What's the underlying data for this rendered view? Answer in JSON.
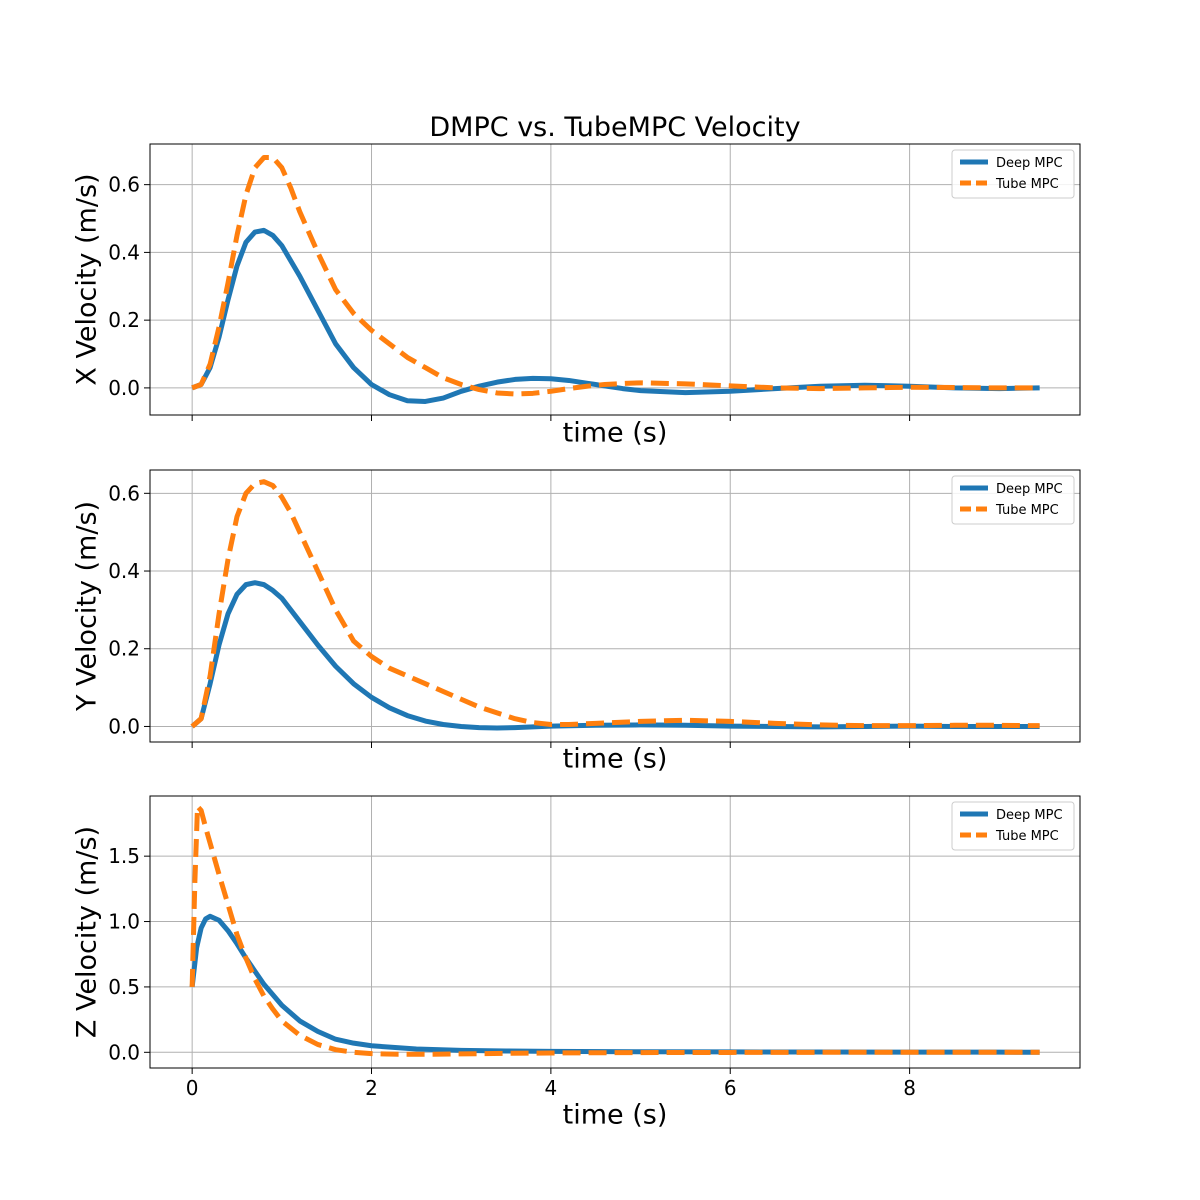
{
  "title": "DMPC vs. TubeMPC Velocity",
  "colors": {
    "deep": "#1f77b4",
    "tube": "#ff7f0e",
    "grid": "#b0b0b0"
  },
  "chart_data": [
    {
      "type": "line",
      "ylabel": "X Velocity (m/s)",
      "xlabel": "time (s)",
      "xlim": [
        -0.47,
        9.9
      ],
      "ylim": [
        -0.08,
        0.72
      ],
      "xticks": [
        0,
        2,
        4,
        6,
        8
      ],
      "yticks": [
        0.0,
        0.2,
        0.4,
        0.6
      ],
      "ytick_labels": [
        "0.0",
        "0.2",
        "0.4",
        "0.6"
      ],
      "show_xtick_labels": false,
      "grid": true,
      "legend_position": "top-right",
      "series": [
        {
          "name": "Deep MPC",
          "x": [
            0,
            0.1,
            0.2,
            0.3,
            0.4,
            0.5,
            0.6,
            0.7,
            0.8,
            0.9,
            1.0,
            1.2,
            1.4,
            1.6,
            1.8,
            2.0,
            2.2,
            2.4,
            2.6,
            2.8,
            3.0,
            3.2,
            3.4,
            3.6,
            3.8,
            4.0,
            4.2,
            4.4,
            4.6,
            4.8,
            5.0,
            5.5,
            6.0,
            6.5,
            7.0,
            7.5,
            8.0,
            8.5,
            9.0,
            9.45
          ],
          "y": [
            0.0,
            0.01,
            0.06,
            0.15,
            0.26,
            0.36,
            0.43,
            0.46,
            0.465,
            0.45,
            0.42,
            0.33,
            0.23,
            0.13,
            0.06,
            0.01,
            -0.02,
            -0.038,
            -0.04,
            -0.03,
            -0.01,
            0.005,
            0.017,
            0.025,
            0.028,
            0.027,
            0.022,
            0.014,
            0.006,
            -0.002,
            -0.008,
            -0.014,
            -0.01,
            -0.002,
            0.005,
            0.008,
            0.005,
            0.0,
            -0.002,
            0.0
          ]
        },
        {
          "name": "Tube MPC",
          "x": [
            0,
            0.1,
            0.2,
            0.3,
            0.4,
            0.5,
            0.6,
            0.7,
            0.8,
            0.9,
            1.0,
            1.1,
            1.2,
            1.4,
            1.6,
            1.8,
            2.0,
            2.2,
            2.4,
            2.6,
            2.8,
            3.0,
            3.2,
            3.4,
            3.6,
            3.8,
            4.0,
            4.2,
            4.4,
            4.6,
            4.8,
            5.0,
            5.5,
            6.0,
            6.5,
            7.0,
            7.5,
            8.0,
            8.5,
            9.0,
            9.45
          ],
          "y": [
            0.0,
            0.01,
            0.07,
            0.18,
            0.31,
            0.45,
            0.57,
            0.65,
            0.68,
            0.68,
            0.65,
            0.59,
            0.52,
            0.4,
            0.29,
            0.22,
            0.17,
            0.13,
            0.09,
            0.06,
            0.03,
            0.01,
            -0.005,
            -0.015,
            -0.018,
            -0.016,
            -0.01,
            -0.002,
            0.005,
            0.01,
            0.013,
            0.015,
            0.012,
            0.006,
            0.0,
            -0.002,
            0.0,
            0.002,
            0.001,
            0.0,
            0.0
          ]
        }
      ]
    },
    {
      "type": "line",
      "ylabel": "Y Velocity (m/s)",
      "xlabel": "time (s)",
      "xlim": [
        -0.47,
        9.9
      ],
      "ylim": [
        -0.04,
        0.66
      ],
      "xticks": [
        0,
        2,
        4,
        6,
        8
      ],
      "yticks": [
        0.0,
        0.2,
        0.4,
        0.6
      ],
      "ytick_labels": [
        "0.0",
        "0.2",
        "0.4",
        "0.6"
      ],
      "show_xtick_labels": false,
      "grid": true,
      "legend_position": "top-right",
      "series": [
        {
          "name": "Deep MPC",
          "x": [
            0,
            0.1,
            0.2,
            0.3,
            0.4,
            0.5,
            0.6,
            0.7,
            0.8,
            0.9,
            1.0,
            1.2,
            1.4,
            1.6,
            1.8,
            2.0,
            2.2,
            2.4,
            2.6,
            2.8,
            3.0,
            3.2,
            3.4,
            3.6,
            3.8,
            4.0,
            4.5,
            5.0,
            5.5,
            6.0,
            6.5,
            7.0,
            7.5,
            8.0,
            8.5,
            9.0,
            9.45
          ],
          "y": [
            0.0,
            0.02,
            0.11,
            0.21,
            0.29,
            0.34,
            0.365,
            0.37,
            0.365,
            0.35,
            0.33,
            0.27,
            0.21,
            0.155,
            0.11,
            0.075,
            0.048,
            0.028,
            0.014,
            0.005,
            0.0,
            -0.003,
            -0.004,
            -0.003,
            -0.001,
            0.001,
            0.003,
            0.004,
            0.003,
            0.001,
            0.0,
            -0.001,
            0.0,
            0.001,
            0.0,
            0.0,
            0.0
          ]
        },
        {
          "name": "Tube MPC",
          "x": [
            0,
            0.1,
            0.2,
            0.3,
            0.4,
            0.5,
            0.6,
            0.7,
            0.8,
            0.9,
            1.0,
            1.1,
            1.2,
            1.4,
            1.6,
            1.8,
            2.0,
            2.2,
            2.4,
            2.6,
            2.8,
            3.0,
            3.2,
            3.4,
            3.6,
            3.8,
            4.0,
            4.2,
            4.5,
            5.0,
            5.5,
            6.0,
            6.5,
            7.0,
            7.5,
            8.0,
            8.5,
            9.0,
            9.45
          ],
          "y": [
            0.0,
            0.02,
            0.13,
            0.29,
            0.43,
            0.54,
            0.6,
            0.625,
            0.63,
            0.62,
            0.59,
            0.55,
            0.5,
            0.4,
            0.3,
            0.22,
            0.18,
            0.15,
            0.13,
            0.11,
            0.09,
            0.07,
            0.05,
            0.035,
            0.02,
            0.01,
            0.005,
            0.005,
            0.008,
            0.013,
            0.016,
            0.013,
            0.008,
            0.004,
            0.002,
            0.002,
            0.003,
            0.003,
            0.002
          ]
        }
      ]
    },
    {
      "type": "line",
      "ylabel": "Z Velocity (m/s)",
      "xlabel": "time (s)",
      "xlim": [
        -0.47,
        9.9
      ],
      "ylim": [
        -0.12,
        1.96
      ],
      "xticks": [
        0,
        2,
        4,
        6,
        8
      ],
      "xtick_labels": [
        "0",
        "2",
        "4",
        "6",
        "8"
      ],
      "yticks": [
        0.0,
        0.5,
        1.0,
        1.5
      ],
      "ytick_labels": [
        "0.0",
        "0.5",
        "1.0",
        "1.5"
      ],
      "show_xtick_labels": true,
      "grid": true,
      "legend_position": "top-right",
      "series": [
        {
          "name": "Deep MPC",
          "x": [
            0,
            0.05,
            0.1,
            0.15,
            0.2,
            0.3,
            0.4,
            0.5,
            0.6,
            0.7,
            0.8,
            1.0,
            1.2,
            1.4,
            1.6,
            1.8,
            2.0,
            2.5,
            3.0,
            3.5,
            4.0,
            5.0,
            6.0,
            7.0,
            8.0,
            9.0,
            9.45
          ],
          "y": [
            0.5,
            0.8,
            0.95,
            1.02,
            1.04,
            1.01,
            0.93,
            0.83,
            0.72,
            0.62,
            0.52,
            0.36,
            0.24,
            0.16,
            0.1,
            0.07,
            0.05,
            0.025,
            0.015,
            0.01,
            0.007,
            0.004,
            0.003,
            0.002,
            0.001,
            0.001,
            0.0
          ]
        },
        {
          "name": "Tube MPC",
          "x": [
            0,
            0.03,
            0.06,
            0.1,
            0.15,
            0.2,
            0.3,
            0.4,
            0.5,
            0.6,
            0.7,
            0.8,
            0.9,
            1.0,
            1.2,
            1.4,
            1.6,
            1.8,
            2.0,
            2.3,
            2.6,
            3.0,
            3.5,
            4.0,
            5.0,
            6.0,
            7.0,
            8.0,
            9.0,
            9.45
          ],
          "y": [
            0.5,
            1.3,
            1.88,
            1.85,
            1.72,
            1.6,
            1.36,
            1.13,
            0.9,
            0.72,
            0.56,
            0.43,
            0.33,
            0.24,
            0.13,
            0.06,
            0.02,
            0.0,
            -0.01,
            -0.015,
            -0.015,
            -0.012,
            -0.008,
            -0.005,
            -0.002,
            -0.001,
            0.0,
            0.0,
            0.0,
            0.0
          ]
        }
      ]
    }
  ]
}
